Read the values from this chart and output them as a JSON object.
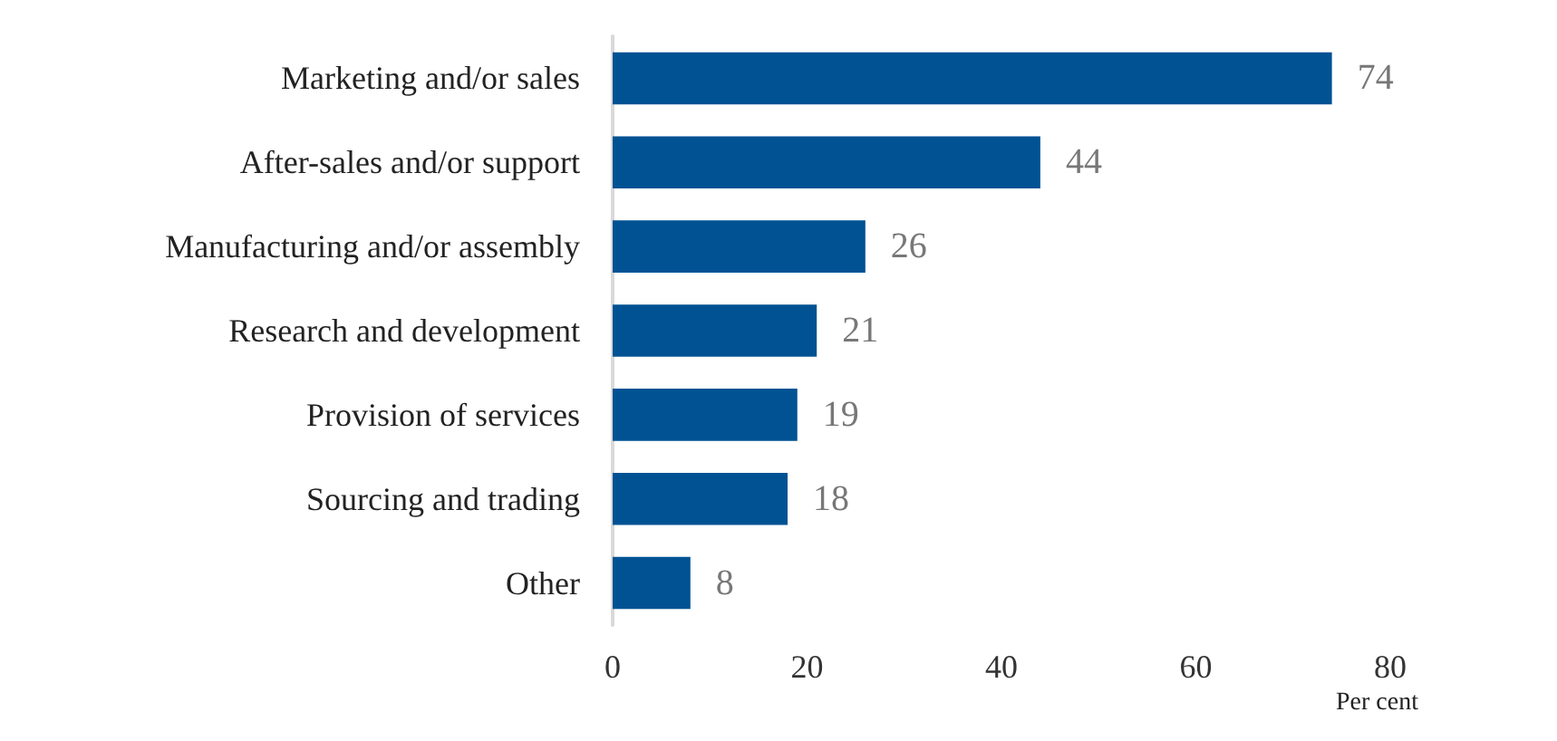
{
  "chart_data": {
    "type": "bar",
    "orientation": "horizontal",
    "categories": [
      "Marketing and/or sales",
      "After-sales and/or support",
      "Manufacturing and/or assembly",
      "Research and development",
      "Provision of services",
      "Sourcing and trading",
      "Other"
    ],
    "values": [
      74,
      44,
      26,
      21,
      19,
      18,
      8
    ],
    "color": "#005293",
    "xlim": [
      0,
      80
    ],
    "xticks": [
      0,
      20,
      40,
      60,
      80
    ],
    "xlabel": "Per cent",
    "data_labels": true
  }
}
